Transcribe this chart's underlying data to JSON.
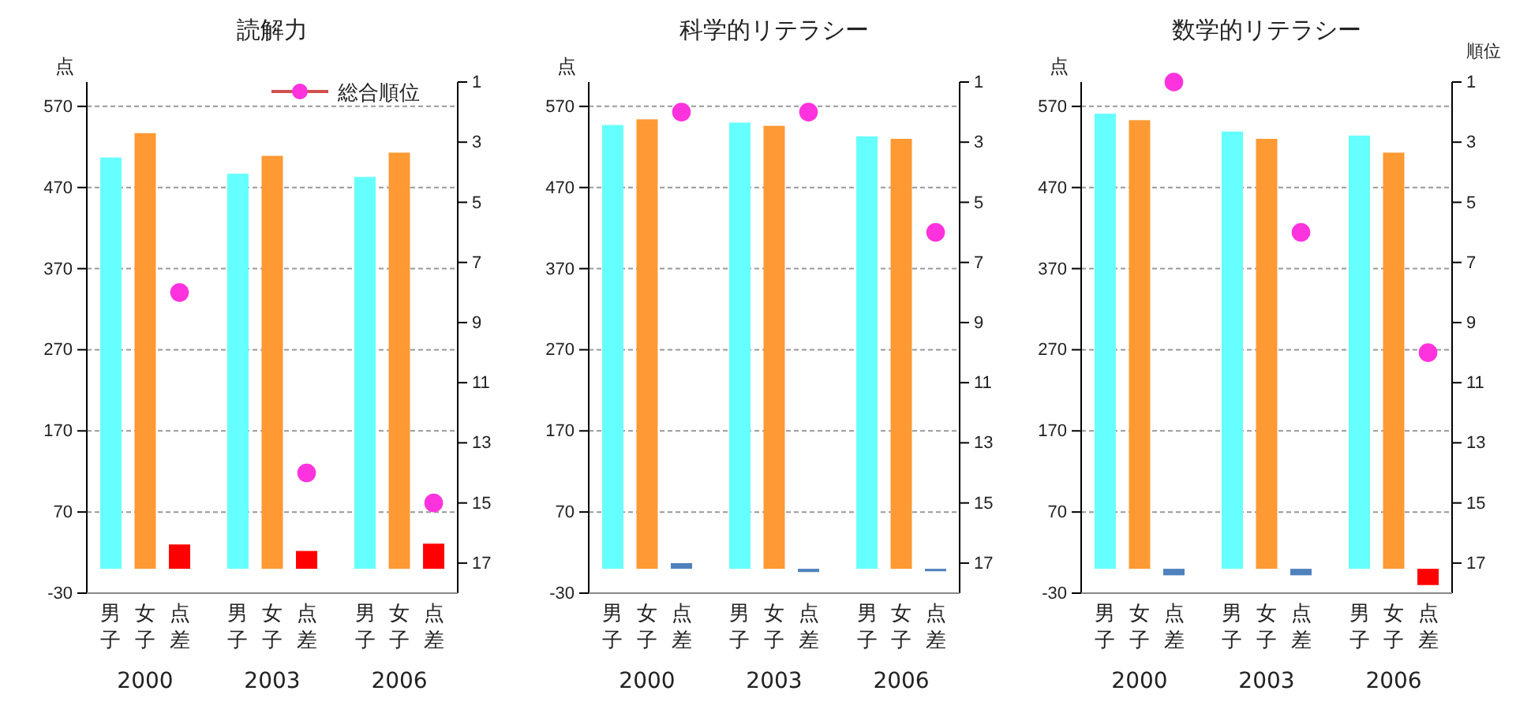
{
  "chart_data": [
    {
      "type": "bar",
      "title": "読解力",
      "ylabel": "点",
      "categories": [
        "男子",
        "女子",
        "点差",
        "男子",
        "女子",
        "点差",
        "男子",
        "女子",
        "点差"
      ],
      "annotations": [
        "2000",
        "2003",
        "2006"
      ],
      "ylim": [
        -30,
        600
      ],
      "yticks": [
        -30,
        70,
        170,
        270,
        370,
        470,
        570
      ],
      "y2lim": [
        18,
        1
      ],
      "y2ticks": [
        1,
        3,
        5,
        7,
        9,
        11,
        13,
        15,
        17
      ],
      "grid": "y",
      "legend": "top right",
      "marker": "circle",
      "series": [
        {
          "type": "bar",
          "colors": [
            "#66ffff",
            "#ff9933",
            "#ff0000",
            "#66ffff",
            "#ff9933",
            "#ff0000",
            "#66ffff",
            "#ff9933",
            "#ff0000"
          ],
          "values": [
            507,
            537,
            30,
            487,
            509,
            22,
            483,
            513,
            31
          ]
        },
        {
          "type": "scatter",
          "axis": "y2",
          "name": "総合順位",
          "color": "#ff33dd",
          "values": [
            null,
            null,
            8,
            null,
            null,
            14,
            null,
            null,
            15
          ]
        }
      ]
    },
    {
      "type": "bar",
      "title": "科学的リテラシー",
      "ylabel": "点",
      "categories": [
        "男子",
        "女子",
        "点差",
        "男子",
        "女子",
        "点差",
        "男子",
        "女子",
        "点差"
      ],
      "annotations": [
        "2000",
        "2003",
        "2006"
      ],
      "ylim": [
        -30,
        600
      ],
      "yticks": [
        -30,
        70,
        170,
        270,
        370,
        470,
        570
      ],
      "y2lim": [
        18,
        1
      ],
      "y2ticks": [
        1,
        3,
        5,
        7,
        9,
        11,
        13,
        15,
        17
      ],
      "grid": "y",
      "marker": "circle",
      "series": [
        {
          "type": "bar",
          "colors": [
            "#66ffff",
            "#ff9933",
            "#4f81bd",
            "#66ffff",
            "#ff9933",
            "#4f81bd",
            "#66ffff",
            "#ff9933",
            "#4f81bd"
          ],
          "values": [
            547,
            554,
            7,
            550,
            546,
            -4,
            533,
            530,
            -3
          ]
        },
        {
          "type": "scatter",
          "axis": "y2",
          "color": "#ff33dd",
          "values": [
            null,
            null,
            2,
            null,
            null,
            2,
            null,
            null,
            6
          ]
        }
      ]
    },
    {
      "type": "bar",
      "title": "数学的リテラシー",
      "ylabel": "点",
      "y2label": "順位",
      "categories": [
        "男子",
        "女子",
        "点差",
        "男子",
        "女子",
        "点差",
        "男子",
        "女子",
        "点差"
      ],
      "annotations": [
        "2000",
        "2003",
        "2006"
      ],
      "ylim": [
        -30,
        600
      ],
      "yticks": [
        -30,
        70,
        170,
        270,
        370,
        470,
        570
      ],
      "y2lim": [
        18,
        1
      ],
      "y2ticks": [
        1,
        3,
        5,
        7,
        9,
        11,
        13,
        15,
        17
      ],
      "grid": "y",
      "marker": "circle",
      "series": [
        {
          "type": "bar",
          "colors": [
            "#66ffff",
            "#ff9933",
            "#4f81bd",
            "#66ffff",
            "#ff9933",
            "#4f81bd",
            "#66ffff",
            "#ff9933",
            "#ff0000"
          ],
          "values": [
            561,
            553,
            -8,
            539,
            530,
            -8,
            534,
            513,
            -20
          ]
        },
        {
          "type": "scatter",
          "axis": "y2",
          "color": "#ff33dd",
          "values": [
            null,
            null,
            1,
            null,
            null,
            6,
            null,
            null,
            10
          ]
        }
      ]
    }
  ]
}
